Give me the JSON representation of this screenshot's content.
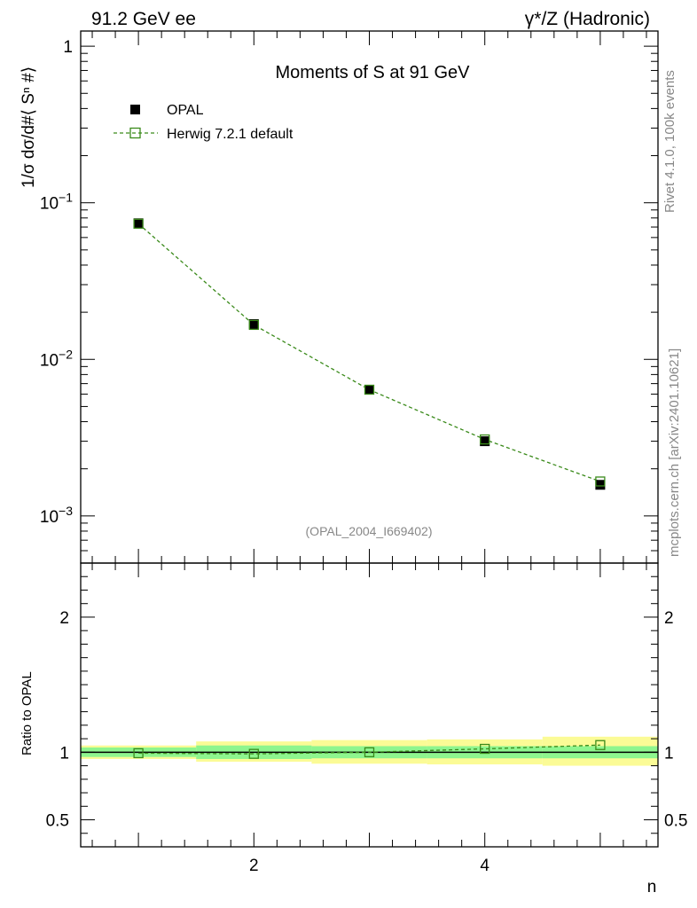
{
  "header": {
    "left": "91.2 GeV ee",
    "right": "γ*/Z (Hadronic)"
  },
  "side_labels": {
    "rivet": "Rivet 4.1.0,  100k events",
    "mcplots": "mcplots.cern.ch [arXiv:2401.10621]"
  },
  "chart_data": {
    "type": "line",
    "title": "Moments of S at 91 GeV",
    "analysis_id": "(OPAL_2004_I669402)",
    "xlabel": "n",
    "ylabel": "1/σ  dσ/d#⟨ Sⁿ #⟩",
    "ratio_ylabel": "Ratio to OPAL",
    "yscale": "log",
    "xlim": [
      0.5,
      5.5
    ],
    "ylim": [
      0.0005,
      1.25
    ],
    "ratio_ylim": [
      0.3,
      2.4
    ],
    "x_ticks": [
      "2",
      "4"
    ],
    "y_ticks": [
      {
        "value": 1,
        "label": "1"
      },
      {
        "value": 0.1,
        "base": "10",
        "exp": "−1"
      },
      {
        "value": 0.01,
        "base": "10",
        "exp": "−2"
      },
      {
        "value": 0.001,
        "base": "10",
        "exp": "−3"
      }
    ],
    "ratio_ticks": [
      {
        "value": 2,
        "label": "2"
      },
      {
        "value": 1,
        "label": "1"
      },
      {
        "value": 0.5,
        "label": "0.5"
      }
    ],
    "x": [
      1,
      2,
      3,
      4,
      5
    ],
    "series": [
      {
        "name": "OPAL",
        "style": "data",
        "color": "#000000",
        "values": [
          0.074,
          0.0168,
          0.0064,
          0.003,
          0.00158
        ]
      },
      {
        "name": "Herwig 7.2.1 default",
        "style": "mc",
        "color": "#3a8a1a",
        "values": [
          0.0735,
          0.0166,
          0.0064,
          0.00308,
          0.00166
        ]
      }
    ],
    "ratio": {
      "mc_values": [
        0.993,
        0.988,
        1.0,
        1.025,
        1.053
      ],
      "band_inner": [
        {
          "lo": 0.965,
          "hi": 1.035
        },
        {
          "lo": 0.95,
          "hi": 1.05
        },
        {
          "lo": 0.955,
          "hi": 1.045
        },
        {
          "lo": 0.955,
          "hi": 1.045
        },
        {
          "lo": 0.955,
          "hi": 1.045
        }
      ],
      "band_outer": [
        {
          "lo": 0.95,
          "hi": 1.05
        },
        {
          "lo": 0.93,
          "hi": 1.08
        },
        {
          "lo": 0.915,
          "hi": 1.09
        },
        {
          "lo": 0.91,
          "hi": 1.095
        },
        {
          "lo": 0.9,
          "hi": 1.115
        }
      ],
      "colors": {
        "inner": "#8ef58e",
        "outer": "#fbfb96"
      }
    }
  }
}
